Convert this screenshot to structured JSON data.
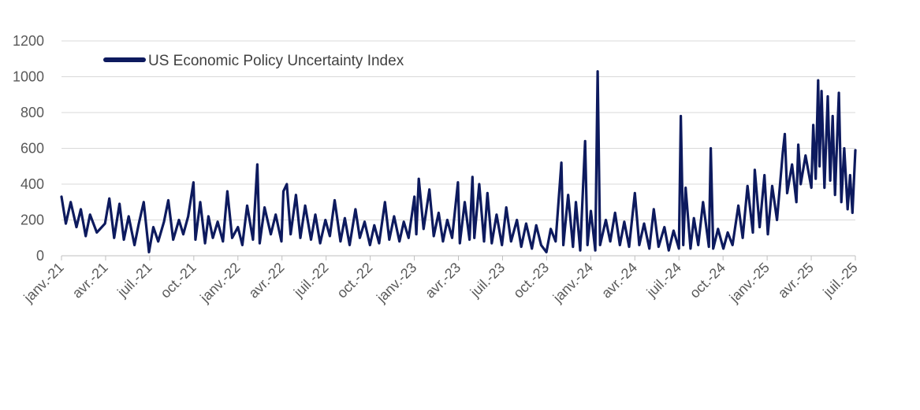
{
  "chart_data": {
    "type": "line",
    "title": "",
    "xlabel": "",
    "ylabel": "",
    "ylim": [
      0,
      1200
    ],
    "yticks": [
      0,
      200,
      400,
      600,
      800,
      1000,
      1200
    ],
    "grid": "horizontal",
    "legend": {
      "placement": "top-left"
    },
    "x_tick_labels": [
      "janv.-21",
      "avr.-21",
      "juil.-21",
      "oct.-21",
      "janv.-22",
      "avr.-22",
      "juil.-22",
      "oct.-22",
      "janv.-23",
      "avr.-23",
      "juil.-23",
      "oct.-23",
      "janv.-24",
      "avr.-24",
      "juil.-24",
      "oct.-24",
      "janv.-25",
      "avr.-25",
      "juil.-25"
    ],
    "x_range": [
      "2021-01-01",
      "2025-07-01"
    ],
    "series": [
      {
        "name": "US Economic Policy Uncertainty Index",
        "color": "#0d1a5e",
        "points": [
          [
            "2021-01-01",
            330
          ],
          [
            "2021-01-10",
            180
          ],
          [
            "2021-01-20",
            300
          ],
          [
            "2021-02-01",
            160
          ],
          [
            "2021-02-10",
            260
          ],
          [
            "2021-02-20",
            110
          ],
          [
            "2021-03-01",
            230
          ],
          [
            "2021-03-15",
            130
          ],
          [
            "2021-04-01",
            180
          ],
          [
            "2021-04-10",
            320
          ],
          [
            "2021-04-20",
            100
          ],
          [
            "2021-05-01",
            290
          ],
          [
            "2021-05-10",
            90
          ],
          [
            "2021-05-20",
            220
          ],
          [
            "2021-06-01",
            60
          ],
          [
            "2021-06-10",
            180
          ],
          [
            "2021-06-20",
            300
          ],
          [
            "2021-07-01",
            20
          ],
          [
            "2021-07-10",
            160
          ],
          [
            "2021-07-20",
            80
          ],
          [
            "2021-08-01",
            190
          ],
          [
            "2021-08-10",
            310
          ],
          [
            "2021-08-20",
            90
          ],
          [
            "2021-09-01",
            200
          ],
          [
            "2021-09-10",
            120
          ],
          [
            "2021-09-20",
            220
          ],
          [
            "2021-10-01",
            410
          ],
          [
            "2021-10-05",
            90
          ],
          [
            "2021-10-15",
            300
          ],
          [
            "2021-10-25",
            70
          ],
          [
            "2021-11-01",
            220
          ],
          [
            "2021-11-10",
            100
          ],
          [
            "2021-11-20",
            190
          ],
          [
            "2021-12-01",
            80
          ],
          [
            "2021-12-10",
            360
          ],
          [
            "2021-12-20",
            100
          ],
          [
            "2022-01-01",
            160
          ],
          [
            "2022-01-10",
            60
          ],
          [
            "2022-01-20",
            280
          ],
          [
            "2022-02-01",
            90
          ],
          [
            "2022-02-10",
            510
          ],
          [
            "2022-02-15",
            70
          ],
          [
            "2022-02-25",
            270
          ],
          [
            "2022-03-10",
            120
          ],
          [
            "2022-03-20",
            230
          ],
          [
            "2022-04-01",
            80
          ],
          [
            "2022-04-05",
            360
          ],
          [
            "2022-04-12",
            400
          ],
          [
            "2022-04-20",
            120
          ],
          [
            "2022-05-01",
            340
          ],
          [
            "2022-05-10",
            100
          ],
          [
            "2022-05-20",
            280
          ],
          [
            "2022-06-01",
            90
          ],
          [
            "2022-06-10",
            230
          ],
          [
            "2022-06-20",
            70
          ],
          [
            "2022-07-01",
            200
          ],
          [
            "2022-07-10",
            110
          ],
          [
            "2022-07-20",
            310
          ],
          [
            "2022-08-01",
            80
          ],
          [
            "2022-08-10",
            210
          ],
          [
            "2022-08-20",
            60
          ],
          [
            "2022-09-01",
            260
          ],
          [
            "2022-09-10",
            100
          ],
          [
            "2022-09-20",
            190
          ],
          [
            "2022-10-01",
            60
          ],
          [
            "2022-10-10",
            170
          ],
          [
            "2022-10-20",
            70
          ],
          [
            "2022-11-01",
            300
          ],
          [
            "2022-11-10",
            90
          ],
          [
            "2022-11-20",
            220
          ],
          [
            "2022-12-01",
            80
          ],
          [
            "2022-12-10",
            190
          ],
          [
            "2022-12-20",
            100
          ],
          [
            "2023-01-01",
            330
          ],
          [
            "2023-01-05",
            120
          ],
          [
            "2023-01-10",
            430
          ],
          [
            "2023-01-20",
            150
          ],
          [
            "2023-02-01",
            370
          ],
          [
            "2023-02-10",
            110
          ],
          [
            "2023-02-20",
            240
          ],
          [
            "2023-03-01",
            80
          ],
          [
            "2023-03-10",
            200
          ],
          [
            "2023-03-20",
            100
          ],
          [
            "2023-04-01",
            410
          ],
          [
            "2023-04-05",
            70
          ],
          [
            "2023-04-15",
            300
          ],
          [
            "2023-04-25",
            90
          ],
          [
            "2023-05-01",
            440
          ],
          [
            "2023-05-05",
            100
          ],
          [
            "2023-05-15",
            400
          ],
          [
            "2023-05-25",
            80
          ],
          [
            "2023-06-01",
            350
          ],
          [
            "2023-06-10",
            70
          ],
          [
            "2023-06-20",
            230
          ],
          [
            "2023-07-01",
            60
          ],
          [
            "2023-07-10",
            270
          ],
          [
            "2023-07-20",
            80
          ],
          [
            "2023-08-01",
            200
          ],
          [
            "2023-08-10",
            50
          ],
          [
            "2023-08-20",
            180
          ],
          [
            "2023-09-01",
            40
          ],
          [
            "2023-09-10",
            170
          ],
          [
            "2023-09-20",
            60
          ],
          [
            "2023-10-01",
            20
          ],
          [
            "2023-10-10",
            150
          ],
          [
            "2023-10-20",
            80
          ],
          [
            "2023-11-01",
            520
          ],
          [
            "2023-11-05",
            60
          ],
          [
            "2023-11-15",
            340
          ],
          [
            "2023-11-25",
            50
          ],
          [
            "2023-12-01",
            300
          ],
          [
            "2023-12-10",
            30
          ],
          [
            "2023-12-20",
            640
          ],
          [
            "2023-12-25",
            60
          ],
          [
            "2024-01-01",
            250
          ],
          [
            "2024-01-10",
            30
          ],
          [
            "2024-01-15",
            1030
          ],
          [
            "2024-01-20",
            60
          ],
          [
            "2024-02-01",
            200
          ],
          [
            "2024-02-10",
            80
          ],
          [
            "2024-02-20",
            240
          ],
          [
            "2024-03-01",
            60
          ],
          [
            "2024-03-10",
            190
          ],
          [
            "2024-03-20",
            50
          ],
          [
            "2024-04-01",
            350
          ],
          [
            "2024-04-10",
            60
          ],
          [
            "2024-04-20",
            180
          ],
          [
            "2024-05-01",
            40
          ],
          [
            "2024-05-10",
            260
          ],
          [
            "2024-05-20",
            50
          ],
          [
            "2024-06-01",
            160
          ],
          [
            "2024-06-10",
            30
          ],
          [
            "2024-06-20",
            140
          ],
          [
            "2024-07-01",
            40
          ],
          [
            "2024-07-05",
            780
          ],
          [
            "2024-07-10",
            60
          ],
          [
            "2024-07-15",
            380
          ],
          [
            "2024-07-25",
            40
          ],
          [
            "2024-08-01",
            210
          ],
          [
            "2024-08-10",
            60
          ],
          [
            "2024-08-20",
            300
          ],
          [
            "2024-09-01",
            50
          ],
          [
            "2024-09-05",
            600
          ],
          [
            "2024-09-10",
            40
          ],
          [
            "2024-09-20",
            150
          ],
          [
            "2024-10-01",
            40
          ],
          [
            "2024-10-10",
            130
          ],
          [
            "2024-10-20",
            60
          ],
          [
            "2024-11-01",
            280
          ],
          [
            "2024-11-10",
            100
          ],
          [
            "2024-11-20",
            390
          ],
          [
            "2024-12-01",
            130
          ],
          [
            "2024-12-05",
            480
          ],
          [
            "2024-12-15",
            160
          ],
          [
            "2024-12-25",
            450
          ],
          [
            "2025-01-01",
            120
          ],
          [
            "2025-01-10",
            390
          ],
          [
            "2025-01-20",
            200
          ],
          [
            "2025-02-01",
            580
          ],
          [
            "2025-02-05",
            680
          ],
          [
            "2025-02-10",
            350
          ],
          [
            "2025-02-20",
            510
          ],
          [
            "2025-03-01",
            300
          ],
          [
            "2025-03-05",
            620
          ],
          [
            "2025-03-10",
            400
          ],
          [
            "2025-03-20",
            560
          ],
          [
            "2025-04-01",
            380
          ],
          [
            "2025-04-05",
            730
          ],
          [
            "2025-04-10",
            430
          ],
          [
            "2025-04-15",
            980
          ],
          [
            "2025-04-18",
            500
          ],
          [
            "2025-04-22",
            920
          ],
          [
            "2025-04-28",
            380
          ],
          [
            "2025-05-05",
            890
          ],
          [
            "2025-05-10",
            420
          ],
          [
            "2025-05-15",
            780
          ],
          [
            "2025-05-20",
            340
          ],
          [
            "2025-05-28",
            910
          ],
          [
            "2025-06-02",
            300
          ],
          [
            "2025-06-08",
            600
          ],
          [
            "2025-06-15",
            260
          ],
          [
            "2025-06-20",
            450
          ],
          [
            "2025-06-25",
            240
          ],
          [
            "2025-07-01",
            590
          ]
        ]
      }
    ]
  }
}
